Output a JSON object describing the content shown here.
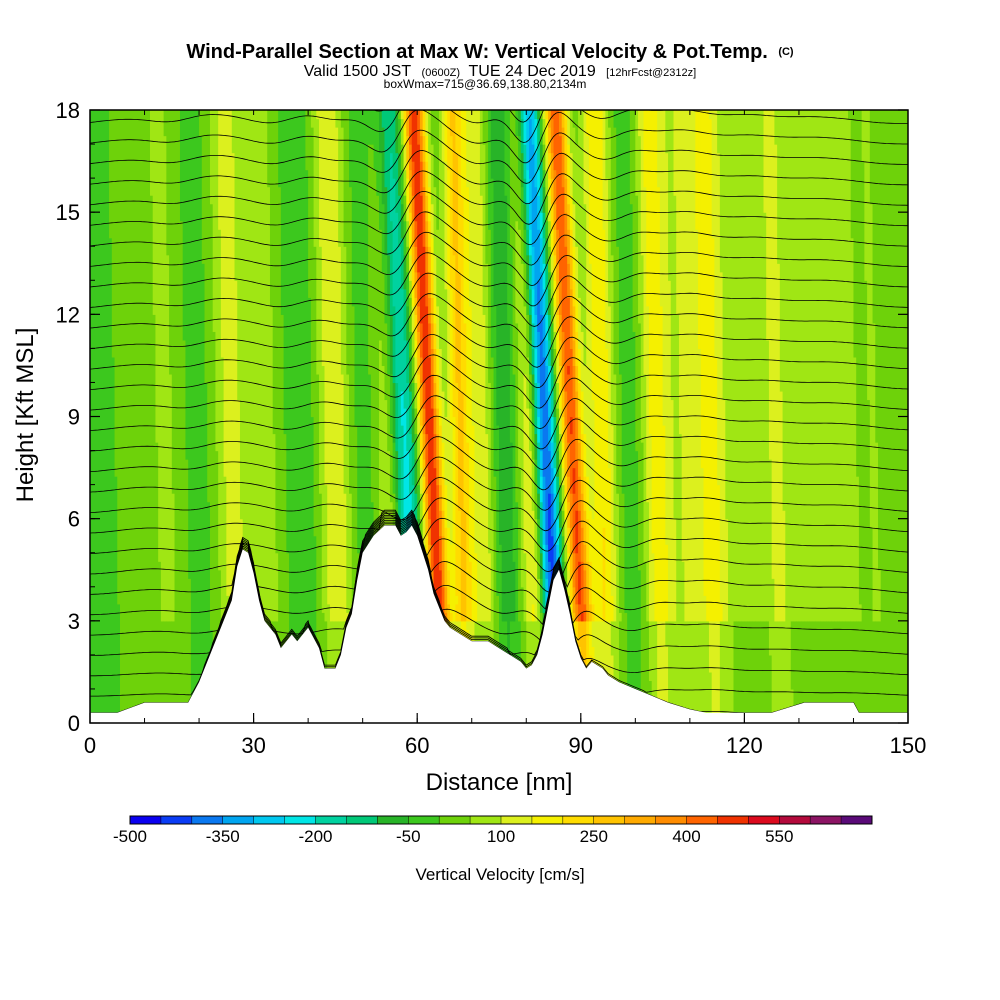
{
  "chart_data": {
    "type": "heatmap",
    "title": "Wind-Parallel Section at Max W: Vertical Velocity & Pot.Temp.",
    "title_suffix": "(C)",
    "subtitle": {
      "part1": "Valid 1500 JST",
      "part2": "(0600Z)",
      "part3": "TUE 24 Dec 2019",
      "part4": "[12hrFcst@2312z]"
    },
    "boxline": "boxWmax=715@36.69,138.80,2134m",
    "xlabel": "Distance [nm]",
    "ylabel": "Height [Kft MSL]",
    "xlim": [
      0,
      150
    ],
    "ylim": [
      0,
      18
    ],
    "xticks": [
      0,
      30,
      60,
      90,
      120,
      150
    ],
    "yticks": [
      0,
      3,
      6,
      9,
      12,
      15,
      18
    ],
    "colorbar": {
      "label": "Vertical Velocity [cm/s]",
      "tick_labels": [
        "-500",
        "-350",
        "-200",
        "-50",
        "100",
        "250",
        "400",
        "550"
      ],
      "levels": [
        -500,
        -450,
        -400,
        -350,
        -300,
        -250,
        -200,
        -150,
        -100,
        -50,
        0,
        50,
        100,
        150,
        200,
        250,
        300,
        350,
        400,
        450,
        500,
        550,
        600,
        650
      ],
      "colors": [
        "#0a00f0",
        "#0a3cf5",
        "#0a78f0",
        "#00a5f0",
        "#00c8f0",
        "#00e6e6",
        "#00d2a0",
        "#00c878",
        "#28b428",
        "#3cc81e",
        "#6ed20a",
        "#a0e614",
        "#dcf01e",
        "#f5f000",
        "#ffdc00",
        "#ffc300",
        "#ffaa00",
        "#ff8c00",
        "#ff6400",
        "#f03200",
        "#dc0a1e",
        "#b40a3c",
        "#8c1464",
        "#5a0a78"
      ]
    },
    "terrain_kft": [
      [
        0,
        0.3
      ],
      [
        5,
        0.3
      ],
      [
        10,
        0.6
      ],
      [
        18,
        0.6
      ],
      [
        20,
        1.2
      ],
      [
        22,
        2.0
      ],
      [
        24,
        2.8
      ],
      [
        26,
        3.6
      ],
      [
        27,
        4.6
      ],
      [
        28,
        5.1
      ],
      [
        29,
        5.0
      ],
      [
        30,
        4.4
      ],
      [
        31,
        3.6
      ],
      [
        32,
        3.0
      ],
      [
        34,
        2.6
      ],
      [
        35,
        2.2
      ],
      [
        37,
        2.6
      ],
      [
        38,
        2.4
      ],
      [
        40,
        2.8
      ],
      [
        42,
        2.2
      ],
      [
        43,
        1.6
      ],
      [
        45,
        1.6
      ],
      [
        46,
        2.0
      ],
      [
        47,
        2.8
      ],
      [
        48,
        3.2
      ],
      [
        49,
        4.2
      ],
      [
        50,
        5.0
      ],
      [
        52,
        5.5
      ],
      [
        54,
        5.8
      ],
      [
        56,
        5.8
      ],
      [
        57,
        5.5
      ],
      [
        58,
        5.6
      ],
      [
        59,
        5.8
      ],
      [
        60,
        5.5
      ],
      [
        61,
        5.0
      ],
      [
        62,
        4.5
      ],
      [
        63,
        3.8
      ],
      [
        64,
        3.4
      ],
      [
        65,
        3.0
      ],
      [
        66,
        2.8
      ],
      [
        68,
        2.6
      ],
      [
        70,
        2.4
      ],
      [
        73,
        2.4
      ],
      [
        75,
        2.2
      ],
      [
        77,
        2.0
      ],
      [
        79,
        1.8
      ],
      [
        80,
        1.6
      ],
      [
        81,
        1.7
      ],
      [
        82,
        2.0
      ],
      [
        83,
        2.6
      ],
      [
        84,
        3.4
      ],
      [
        85,
        4.2
      ],
      [
        86,
        4.5
      ],
      [
        87,
        3.9
      ],
      [
        88,
        3.2
      ],
      [
        89,
        2.4
      ],
      [
        90,
        1.9
      ],
      [
        91,
        1.6
      ],
      [
        92,
        1.8
      ],
      [
        94,
        1.6
      ],
      [
        95,
        1.4
      ],
      [
        97,
        1.2
      ],
      [
        100,
        1.0
      ],
      [
        103,
        0.8
      ],
      [
        106,
        0.6
      ],
      [
        110,
        0.4
      ],
      [
        113,
        0.3
      ],
      [
        118,
        0.3
      ],
      [
        120,
        0.3
      ],
      [
        125,
        0.3
      ],
      [
        131,
        0.6
      ],
      [
        133,
        0.6
      ],
      [
        140,
        0.6
      ],
      [
        141,
        0.3
      ],
      [
        150,
        0.3
      ]
    ],
    "w_field_cm_s": {
      "base": 0,
      "x_bands": [
        {
          "x": 3,
          "width": 4,
          "amp": -20
        },
        {
          "x": 9,
          "width": 3,
          "amp": 40
        },
        {
          "x": 15,
          "width": 3,
          "amp": 60
        },
        {
          "x": 21,
          "width": 3,
          "amp": -20
        },
        {
          "x": 27,
          "width": 3,
          "amp": 120
        },
        {
          "x": 33,
          "width": 3,
          "amp": 80
        },
        {
          "x": 40,
          "width": 3,
          "amp": -40
        },
        {
          "x": 46,
          "width": 3,
          "amp": 150
        },
        {
          "x": 51,
          "width": 3,
          "amp": -30
        },
        {
          "x": 56,
          "width": 2.5,
          "amp": 130
        },
        {
          "x": 60,
          "width": 2.5,
          "amp": -250
        },
        {
          "x": 65,
          "width": 2,
          "amp": 500
        },
        {
          "x": 69,
          "width": 2,
          "amp": 250
        },
        {
          "x": 73,
          "width": 2.5,
          "amp": 140
        },
        {
          "x": 77,
          "width": 2.5,
          "amp": -100
        },
        {
          "x": 82,
          "width": 2.5,
          "amp": 170
        },
        {
          "x": 86,
          "width": 2,
          "amp": -450
        },
        {
          "x": 91,
          "width": 2,
          "amp": 450
        },
        {
          "x": 95,
          "width": 2.5,
          "amp": 200
        },
        {
          "x": 100,
          "width": 2.5,
          "amp": -30
        },
        {
          "x": 105,
          "width": 2.5,
          "amp": 180
        },
        {
          "x": 110,
          "width": 3,
          "amp": 90
        },
        {
          "x": 115,
          "width": 3,
          "amp": 170
        },
        {
          "x": 121,
          "width": 3,
          "amp": 70
        },
        {
          "x": 127,
          "width": 3,
          "amp": 110
        },
        {
          "x": 133,
          "width": 3,
          "amp": 60
        },
        {
          "x": 139,
          "width": 3,
          "amp": 80
        },
        {
          "x": 145,
          "width": 3,
          "amp": 50
        }
      ]
    },
    "theta_contours": {
      "count": 32,
      "spacing_kft": 0.6,
      "start_kft": 0.2
    }
  }
}
